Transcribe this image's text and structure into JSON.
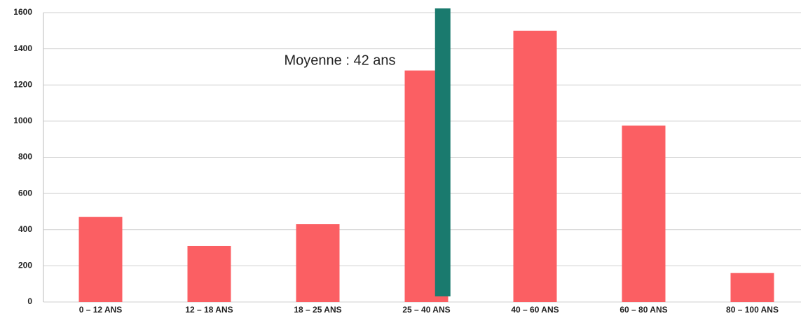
{
  "chart_data": {
    "type": "bar",
    "categories": [
      "0 – 12 ANS",
      "12 – 18 ANS",
      "18 – 25 ANS",
      "25 – 40 ANS",
      "40 – 60 ANS",
      "60 – 80 ANS",
      "80 – 100 ANS"
    ],
    "values": [
      470,
      310,
      430,
      1280,
      1500,
      975,
      160
    ],
    "color": "#fb5f63",
    "ylim": [
      0,
      1600
    ],
    "yticks": [
      0,
      200,
      400,
      600,
      800,
      1000,
      1200,
      1400,
      1600
    ],
    "grid": true,
    "annotation": {
      "text": "Moyenne : 42 ans",
      "color": "#e8474c",
      "marker_color": "#1a7a6e"
    }
  }
}
